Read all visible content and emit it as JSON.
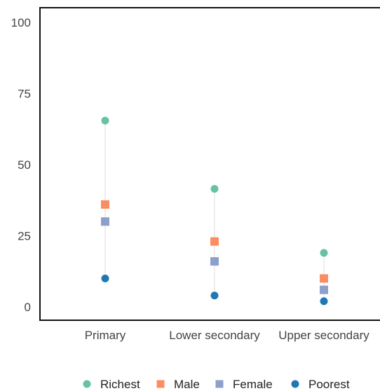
{
  "chart_data": {
    "type": "scatter",
    "categories": [
      "Primary",
      "Lower secondary",
      "Upper secondary"
    ],
    "series": [
      {
        "name": "Richest",
        "marker": "circle",
        "color": "#66c2a5",
        "values": [
          65.5,
          41.5,
          19
        ]
      },
      {
        "name": "Male",
        "marker": "square",
        "color": "#fc8d62",
        "values": [
          36,
          23,
          10
        ]
      },
      {
        "name": "Female",
        "marker": "square",
        "color": "#8da0cb",
        "values": [
          30,
          16,
          6
        ]
      },
      {
        "name": "Poorest",
        "marker": "circle",
        "color": "#1f78b4",
        "values": [
          10,
          4,
          2
        ]
      }
    ],
    "ylim": [
      0,
      100
    ],
    "yticks": [
      0,
      25,
      50,
      75,
      100
    ],
    "xlabel": "",
    "ylabel": "",
    "title": "",
    "grid": false,
    "legend_position": "bottom",
    "range_line_color": "#dddddd"
  }
}
